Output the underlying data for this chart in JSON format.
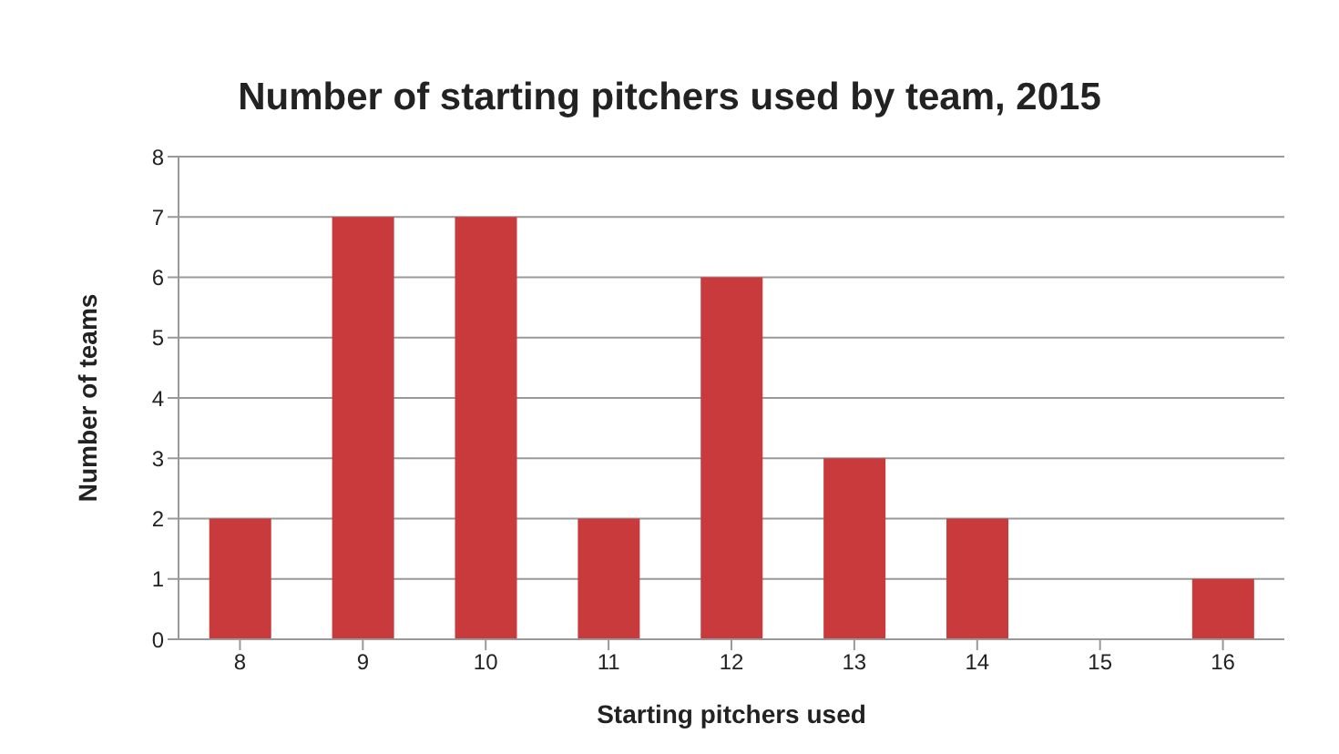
{
  "chart_data": {
    "type": "bar",
    "title": "Number of starting pitchers used by team, 2015",
    "xlabel": "Starting pitchers used",
    "ylabel": "Number of teams",
    "categories": [
      "8",
      "9",
      "10",
      "11",
      "12",
      "13",
      "14",
      "15",
      "16"
    ],
    "values": [
      2,
      7,
      7,
      2,
      6,
      3,
      2,
      0,
      1
    ],
    "color": "#c83a3c",
    "ylim": [
      0,
      8
    ],
    "yticks": [
      0,
      1,
      2,
      3,
      4,
      5,
      6,
      7,
      8
    ],
    "grid": "y"
  }
}
